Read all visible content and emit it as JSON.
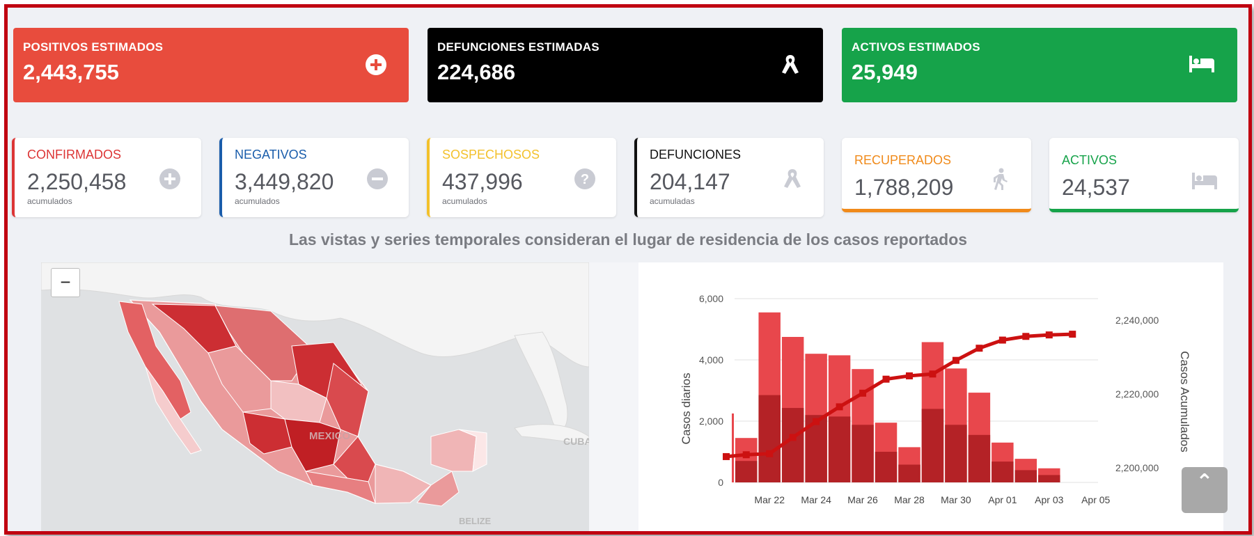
{
  "estimates": [
    {
      "title": "POSITIVOS ESTIMADOS",
      "value": "2,443,755",
      "color": "#e84c3d",
      "icon": "plus-circle-icon"
    },
    {
      "title": "DEFUNCIONES ESTIMADAS",
      "value": "224,686",
      "color": "#000000",
      "icon": "ribbon-icon"
    },
    {
      "title": "ACTIVOS ESTIMADOS",
      "value": "25,949",
      "color": "#16a34a",
      "icon": "bed-icon"
    }
  ],
  "cards": [
    {
      "title": "CONFIRMADOS",
      "value": "2,250,458",
      "sub": "acumulados",
      "color": "#dc3535",
      "icon": "plus-circle-icon"
    },
    {
      "title": "NEGATIVOS",
      "value": "3,449,820",
      "sub": "acumulados",
      "color": "#1a5dab",
      "icon": "minus-circle-icon"
    },
    {
      "title": "SOSPECHOSOS",
      "value": "437,996",
      "sub": "acumulados",
      "color": "#f3c12c",
      "icon": "question-circle-icon"
    },
    {
      "title": "DEFUNCIONES",
      "value": "204,147",
      "sub": "acumuladas",
      "color": "#111111",
      "icon": "ribbon-icon"
    },
    {
      "title": "RECUPERADOS",
      "value": "1,788,209",
      "sub": "",
      "color": "#f08a1a",
      "icon": "walking-person-icon"
    },
    {
      "title": "ACTIVOS",
      "value": "24,537",
      "sub": "",
      "color": "#16a34a",
      "icon": "bed-icon"
    }
  ],
  "notice": "Las vistas y series temporales consideran el lugar de residencia de los casos reportados",
  "map": {
    "zoom_out": "−",
    "labels": {
      "country": "MEXICO",
      "belize": "BELIZE",
      "cuba": "CUBA"
    }
  },
  "scroll_top": "⌃",
  "chart_data": {
    "type": "bar",
    "categories": [
      "Mar 21",
      "Mar 22",
      "Mar 23",
      "Mar 24",
      "Mar 25",
      "Mar 26",
      "Mar 27",
      "Mar 28",
      "Mar 29",
      "Mar 30",
      "Mar 31",
      "Apr 01",
      "Apr 02",
      "Apr 03",
      "Apr 04"
    ],
    "x_tick_labels": [
      "Mar 22",
      "Mar 24",
      "Mar 26",
      "Mar 28",
      "Mar 30",
      "Apr 01",
      "Apr 03",
      "Apr 05"
    ],
    "series": [
      {
        "values": [
          1450,
          5550,
          4750,
          4200,
          4150,
          3700,
          1950,
          1150,
          4580,
          3720,
          2930,
          1300,
          770,
          460,
          0
        ]
      },
      {
        "values": [
          700,
          2850,
          2430,
          2200,
          2150,
          1880,
          1000,
          580,
          2400,
          1880,
          1550,
          680,
          400,
          240,
          0
        ]
      },
      {
        "values": [
          2203500,
          2203800,
          2208200,
          2212500,
          2216500,
          2220200,
          2224000,
          2224900,
          2225400,
          2229100,
          2232400,
          2234600,
          2235600,
          2236000,
          2236200
        ]
      }
    ],
    "ylabel": "Casos diarios",
    "y2label": "Casos Acumulados",
    "ylim": [
      0,
      6500
    ],
    "yticks": [
      "0",
      "2,000",
      "4,000",
      "6,000"
    ],
    "y2lim": [
      2196000,
      2250000
    ],
    "y2ticks": [
      "2,200,000",
      "2,220,000",
      "2,240,000"
    ],
    "colors": {
      "bar": "#e8474c",
      "bar_dark": "#b42226",
      "line": "#cc1111"
    }
  }
}
